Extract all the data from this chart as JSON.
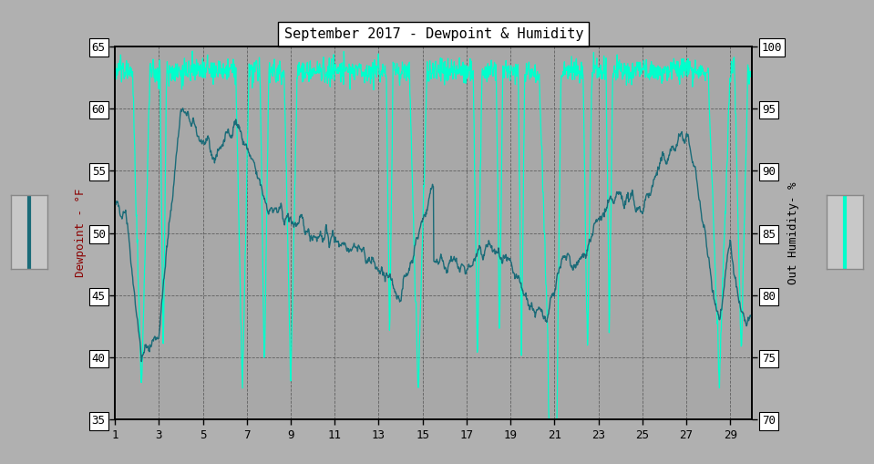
{
  "title": "September 2017 - Dewpoint & Humidity",
  "bg_color": "#b0b0b0",
  "plot_bg_color": "#a8a8a8",
  "dewpoint_color": "#1a6b78",
  "humidity_color": "#00ffcc",
  "left_ylabel": "Dewpoint - °F",
  "right_ylabel": "Out Humidity- %",
  "xlim": [
    1,
    30
  ],
  "ylim_left": [
    35.0,
    65.0
  ],
  "ylim_right": [
    70,
    100
  ],
  "yticks_left": [
    35.0,
    40.0,
    45.0,
    50.0,
    55.0,
    60.0,
    65.0
  ],
  "yticks_right": [
    70,
    75,
    80,
    85,
    90,
    95,
    100
  ],
  "xticks": [
    1,
    3,
    5,
    7,
    9,
    11,
    13,
    15,
    17,
    19,
    21,
    23,
    25,
    27,
    29
  ],
  "grid_color": "#606060",
  "title_fontsize": 11,
  "axis_fontsize": 9,
  "tick_fontsize": 9
}
